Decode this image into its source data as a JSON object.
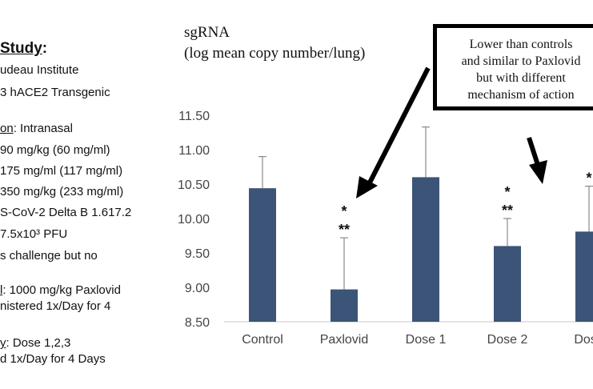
{
  "study_panel": {
    "title_left": "Study",
    "title_right": ":",
    "lines": [
      {
        "key": "",
        "text": "udeau Institute"
      },
      {
        "key": "",
        "text": "3 hACE2 Transgenic"
      },
      {
        "key": "on",
        "text": ": Intranasal"
      },
      {
        "key": "",
        "text": " 90 mg/kg   (60 mg/ml)"
      },
      {
        "key": "",
        "text": " 175 mg/ml   (117 mg/ml)"
      },
      {
        "key": "",
        "text": " 350 mg/kg  (233 mg/ml)"
      },
      {
        "key": "",
        "text": "S-CoV-2 Delta B 1.617.2"
      },
      {
        "key": "",
        "text": "7.5x10³ PFU"
      },
      {
        "key": "",
        "text": "s challenge but no"
      },
      {
        "key": "l",
        "text": ": 1000 mg/kg Paxlovid"
      },
      {
        "key": "",
        "text": "nistered 1x/Day for 4"
      },
      {
        "key": "y",
        "text": ": Dose 1,2,3"
      },
      {
        "key": "",
        "text": "d 1x/Day for 4 Days"
      }
    ]
  },
  "callout": {
    "lines": [
      "Lower than controls",
      "and similar to Paxlovid",
      "but with different",
      "mechanism of action"
    ]
  },
  "chart_data": {
    "type": "bar",
    "ylabel_lines": [
      "sgRNA",
      "(log mean copy number/lung)"
    ],
    "categories": [
      "Control",
      "Paxlovid",
      "Dose 1",
      "Dose 2",
      "Dose"
    ],
    "values": [
      10.44,
      8.97,
      10.6,
      9.6,
      9.81
    ],
    "error_upper": [
      10.9,
      9.72,
      11.33,
      10.0,
      10.47
    ],
    "significance_lines": [
      [],
      [
        "*",
        "**"
      ],
      [],
      [
        "*",
        "**"
      ],
      [
        "*"
      ]
    ],
    "ylim": [
      8.5,
      11.5
    ],
    "yticks": [
      "8.50",
      "9.00",
      "9.50",
      "10.00",
      "10.50",
      "11.00",
      "11.50"
    ],
    "bar_color": "#3b5478",
    "grid": false,
    "legend": "none"
  }
}
